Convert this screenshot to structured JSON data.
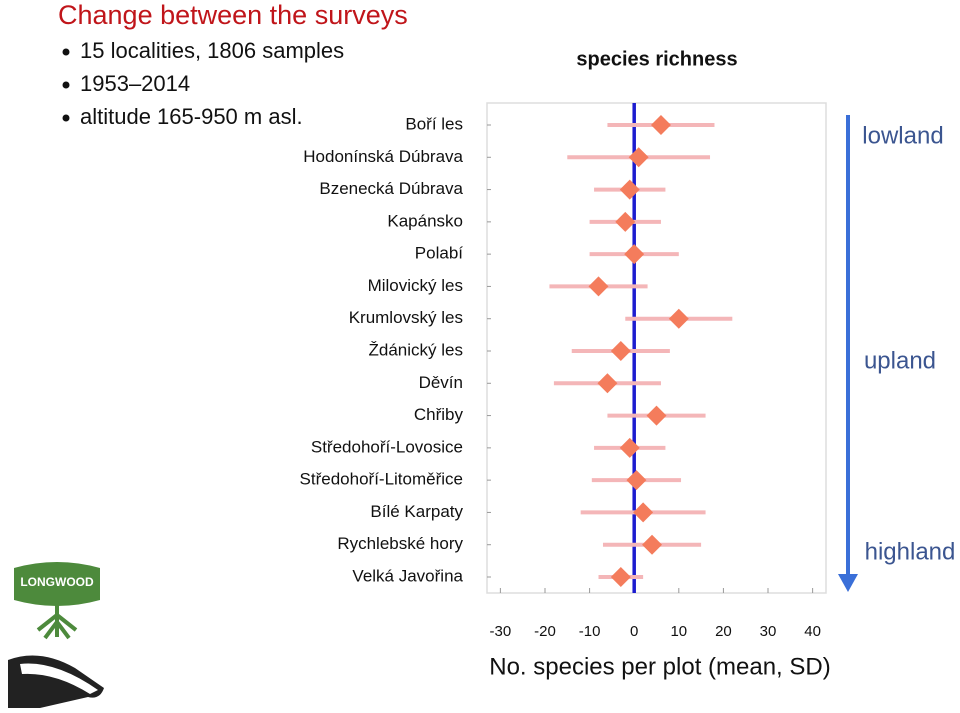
{
  "header": {
    "title": "Change between the surveys",
    "bullets": [
      "15 localities, 1806 samples",
      "1953–2014",
      "altitude 165-950 m asl."
    ]
  },
  "logo": {
    "text": "LONGWOOD"
  },
  "chart_data": {
    "type": "dot-error",
    "title": "species richness",
    "x_label": "No. species per plot (mean, SD)",
    "categories": [
      "Boří les",
      "Hodonínská Dúbrava",
      "Bzenecká Dúbrava",
      "Kapánsko",
      "Polabí",
      "Milovický les",
      "Krumlovský les",
      "Ždánický les",
      "Děvín",
      "Chřiby",
      "Středohoří-Lovosice",
      "Středohoří-Litoměřice",
      "Bílé Karpaty",
      "Rychlebské hory",
      "Velká Javořina"
    ],
    "values": [
      6,
      1,
      -1,
      -2,
      0,
      -8,
      10,
      -3,
      -6,
      5,
      -1,
      0.5,
      2,
      4,
      -3
    ],
    "errors": [
      12,
      16,
      8,
      8,
      10,
      11,
      12,
      11,
      12,
      11,
      8,
      10,
      14,
      11,
      5
    ],
    "marker_color": "#f47c5c",
    "error_color": "#f4b6b8",
    "reference_color": "#1c1ccf",
    "reference_value": 0,
    "xlim": [
      -33,
      43
    ],
    "xticks": [
      -30,
      -20,
      -10,
      0,
      10,
      20,
      30,
      40
    ],
    "zones": [
      "lowland",
      "upland",
      "highland"
    ]
  }
}
